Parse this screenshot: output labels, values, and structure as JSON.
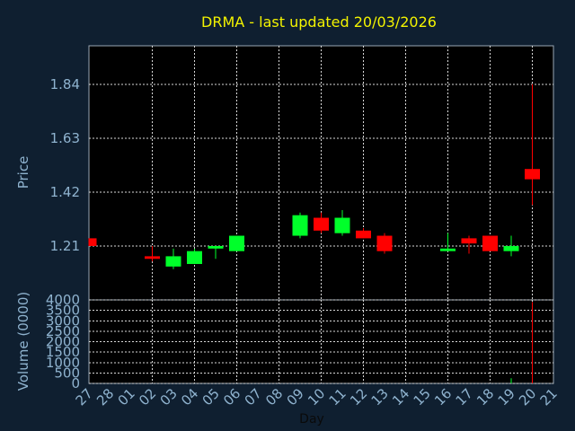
{
  "chart_data": {
    "type": "candlestick",
    "title": "DRMA - last updated 20/03/2026",
    "xlabel": "Day",
    "price_panel": {
      "ylabel": "Price",
      "ylim": [
        1.0,
        1.99
      ],
      "yticks": [
        "1.21",
        "1.42",
        "1.63",
        "1.84"
      ],
      "ytick_values": [
        1.21,
        1.42,
        1.63,
        1.84
      ]
    },
    "volume_panel": {
      "ylabel": "Volume (0000)",
      "ylim": [
        0,
        4000
      ],
      "yticks": [
        "0",
        "500",
        "1000",
        "1500",
        "2000",
        "2500",
        "3000",
        "3500",
        "4000"
      ],
      "ytick_values": [
        0,
        500,
        1000,
        1500,
        2000,
        2500,
        3000,
        3500,
        4000
      ]
    },
    "x_labels": [
      "27",
      "28",
      "01",
      "02",
      "03",
      "04",
      "05",
      "06",
      "07",
      "08",
      "09",
      "10",
      "11",
      "12",
      "13",
      "14",
      "15",
      "16",
      "17",
      "18",
      "19",
      "20",
      "21"
    ],
    "up_color": "#00ff2a",
    "down_color": "#ff0000",
    "candles": [
      {
        "i": 0,
        "open": 1.24,
        "high": 1.24,
        "low": 1.21,
        "close": 1.21
      },
      {
        "i": 3,
        "open": 1.17,
        "high": 1.21,
        "low": 1.15,
        "close": 1.16
      },
      {
        "i": 4,
        "open": 1.13,
        "high": 1.2,
        "low": 1.12,
        "close": 1.17
      },
      {
        "i": 5,
        "open": 1.14,
        "high": 1.2,
        "low": 1.14,
        "close": 1.19
      },
      {
        "i": 6,
        "open": 1.2,
        "high": 1.21,
        "low": 1.16,
        "close": 1.21
      },
      {
        "i": 7,
        "open": 1.19,
        "high": 1.25,
        "low": 1.19,
        "close": 1.25
      },
      {
        "i": 10,
        "open": 1.25,
        "high": 1.34,
        "low": 1.24,
        "close": 1.33
      },
      {
        "i": 11,
        "open": 1.32,
        "high": 1.34,
        "low": 1.26,
        "close": 1.27
      },
      {
        "i": 12,
        "open": 1.26,
        "high": 1.35,
        "low": 1.25,
        "close": 1.32
      },
      {
        "i": 13,
        "open": 1.27,
        "high": 1.28,
        "low": 1.24,
        "close": 1.24
      },
      {
        "i": 14,
        "open": 1.25,
        "high": 1.26,
        "low": 1.18,
        "close": 1.19
      },
      {
        "i": 17,
        "open": 1.19,
        "high": 1.26,
        "low": 1.19,
        "close": 1.2
      },
      {
        "i": 18,
        "open": 1.24,
        "high": 1.25,
        "low": 1.18,
        "close": 1.22
      },
      {
        "i": 19,
        "open": 1.25,
        "high": 1.25,
        "low": 1.19,
        "close": 1.19
      },
      {
        "i": 20,
        "open": 1.19,
        "high": 1.25,
        "low": 1.17,
        "close": 1.21
      },
      {
        "i": 21,
        "open": 1.51,
        "high": 1.84,
        "low": 1.37,
        "close": 1.47
      }
    ],
    "volumes": [
      {
        "i": 20,
        "value": 250,
        "dir": "up"
      },
      {
        "i": 21,
        "value": 3900,
        "dir": "down"
      }
    ]
  }
}
